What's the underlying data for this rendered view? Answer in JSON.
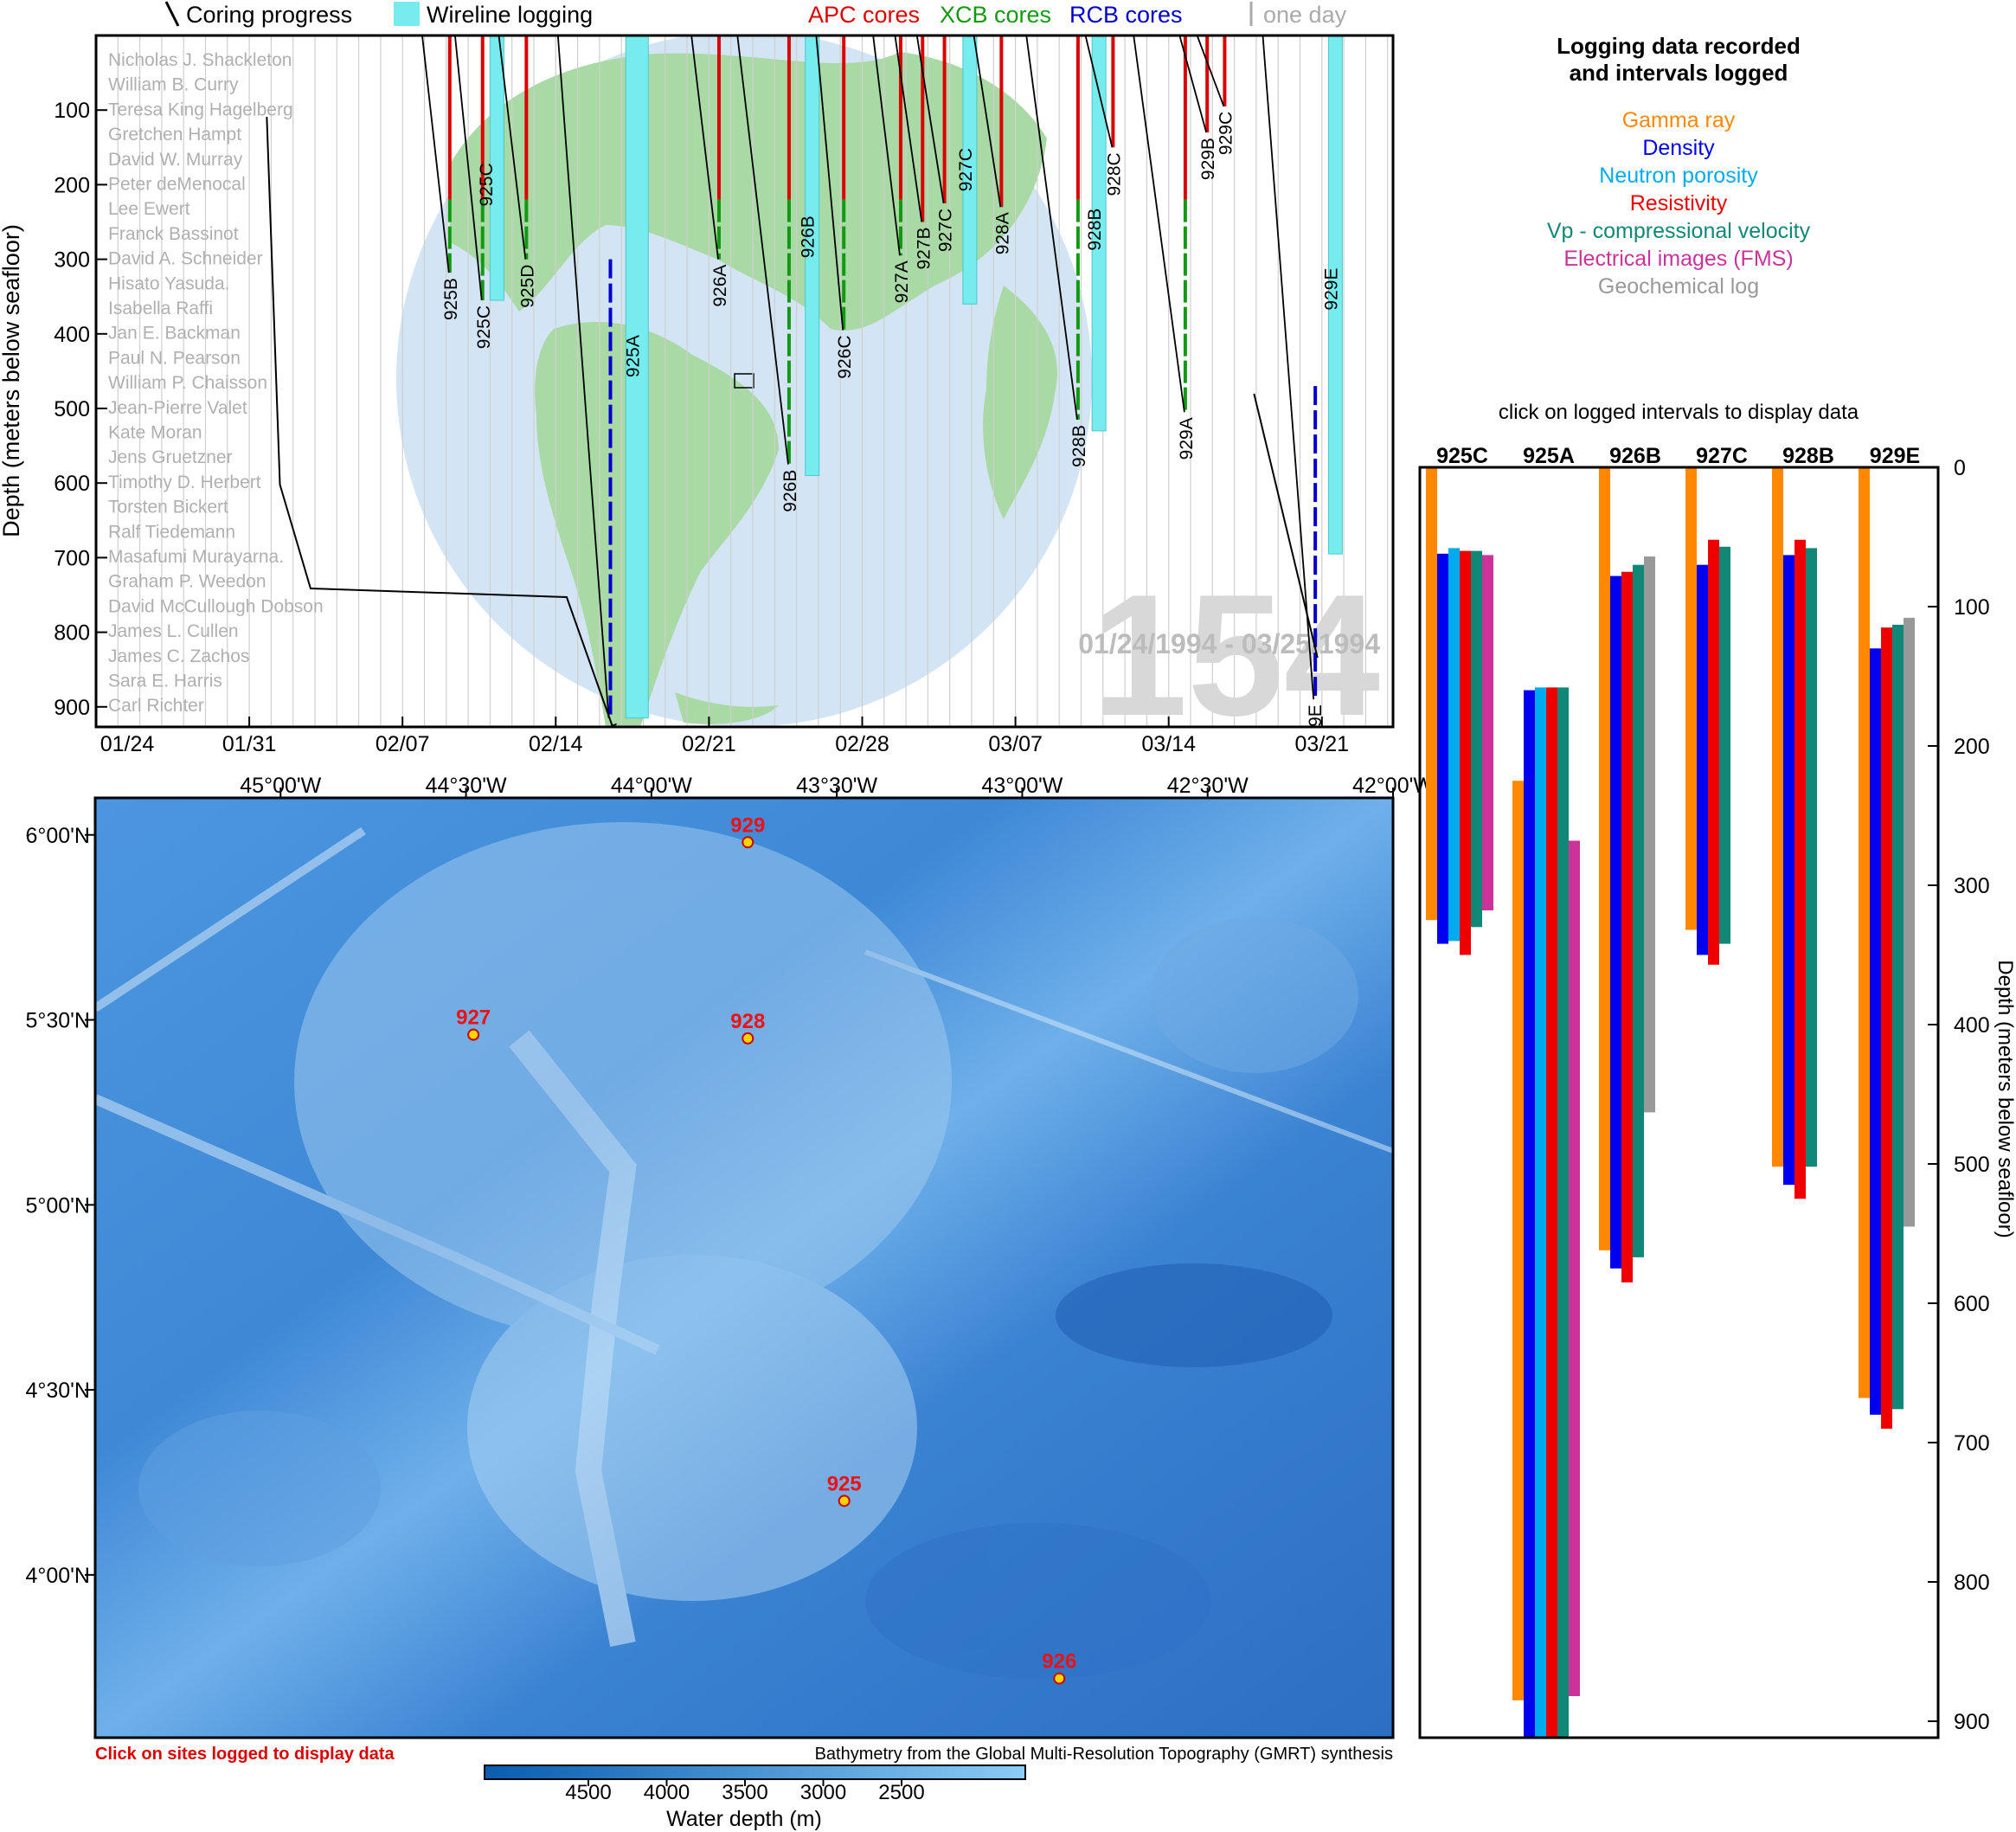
{
  "legend_top": {
    "coring": "Coring progress",
    "wireline": "Wireline logging",
    "apc": "APC cores",
    "xcb": "XCB cores",
    "rcb": "RCB cores",
    "oneday": "one day"
  },
  "colors": {
    "apc": "#dd0000",
    "xcb": "#119911",
    "rcb": "#0000cc",
    "wireline": "#77ecef",
    "gamma": "#ff8800",
    "density": "#0000ee",
    "neutron": "#00aaee",
    "resistivity": "#ee0000",
    "vp": "#118877",
    "fms": "#cc3399",
    "geochem": "#999999"
  },
  "timeline": {
    "ylabel": "Depth (meters below seafloor)",
    "yticks": [
      "100",
      "200",
      "300",
      "400",
      "500",
      "600",
      "700",
      "800",
      "900"
    ],
    "xticks": [
      "01/24",
      "01/31",
      "02/07",
      "02/14",
      "02/21",
      "02/28",
      "03/07",
      "03/14",
      "03/21"
    ],
    "leg_number": "154",
    "date_range": "01/24/1994 - 03/25/1994",
    "scientists": [
      "Nicholas J. Shackleton",
      "William B. Curry",
      "Teresa King Hagelberg",
      "Gretchen Hampt",
      "David W. Murray",
      "Peter deMenocal",
      "Lee Ewert",
      "Franck Bassinot",
      "David A. Schneider",
      "Hisato Yasuda.",
      "Isabella Raffi",
      "Jan E. Backman",
      "Paul N. Pearson",
      "William P. Chaisson",
      "Jean-Pierre Valet",
      "Kate Moran",
      "Jens Gruetzner",
      "Timothy D. Herbert",
      "Torsten Bickert",
      "Ralf Tiedemann",
      "Masafumi Murayarna.",
      "Graham P. Weedon",
      "David McCullough Dobson",
      "James L. Cullen",
      "James C. Zachos",
      "Sara E. Harris",
      "Carl Richter"
    ],
    "holes": [
      {
        "name": "925B",
        "day": 16.0,
        "depth": 318
      },
      {
        "name": "925C",
        "day": 17.5,
        "depth": 355
      },
      {
        "name": "925D",
        "day": 19.5,
        "depth": 300
      },
      {
        "name": "925A",
        "day": 23.3,
        "depth": 915
      },
      {
        "name": "926A",
        "day": 28.3,
        "depth": 300
      },
      {
        "name": "926B",
        "day": 31.5,
        "depth": 575
      },
      {
        "name": "926C",
        "day": 34.0,
        "depth": 395
      },
      {
        "name": "927A",
        "day": 36.6,
        "depth": 295
      },
      {
        "name": "927B",
        "day": 37.6,
        "depth": 250
      },
      {
        "name": "927C",
        "day": 38.6,
        "depth": 225
      },
      {
        "name": "928A",
        "day": 41.2,
        "depth": 230
      },
      {
        "name": "928B",
        "day": 44.7,
        "depth": 515
      },
      {
        "name": "928C",
        "day": 46.3,
        "depth": 150
      },
      {
        "name": "929A",
        "day": 49.6,
        "depth": 505
      },
      {
        "name": "929B",
        "day": 50.6,
        "depth": 130
      },
      {
        "name": "929C",
        "day": 51.4,
        "depth": 95
      },
      {
        "name": "929E",
        "day": 55.5,
        "depth": 890
      }
    ],
    "wireline": [
      {
        "hole": "925C",
        "day": 18.0,
        "depth": 355
      },
      {
        "hole": "925A",
        "day": 24.2,
        "depth": 915
      },
      {
        "hole": "926B",
        "day": 32.4,
        "depth": 590
      },
      {
        "hole": "927C",
        "day": 39.6,
        "depth": 360
      },
      {
        "hole": "928B",
        "day": 45.5,
        "depth": 530
      },
      {
        "hole": "929E",
        "day": 56.3,
        "depth": 695
      }
    ]
  },
  "map": {
    "lon_ticks": [
      "45°00'W",
      "44°30'W",
      "44°00'W",
      "43°30'W",
      "43°00'W",
      "42°30'W",
      "42°00'W"
    ],
    "lat_ticks": [
      "6°00'N",
      "5°30'N",
      "5°00'N",
      "4°30'N",
      "4°00'N"
    ],
    "sites": [
      {
        "name": "929",
        "lon": -43.74,
        "lat": 5.98
      },
      {
        "name": "927",
        "lon": -44.48,
        "lat": 5.46
      },
      {
        "name": "928",
        "lon": -43.74,
        "lat": 5.45
      },
      {
        "name": "925",
        "lon": -43.48,
        "lat": 4.2
      },
      {
        "name": "926",
        "lon": -42.9,
        "lat": 3.72
      }
    ],
    "click_note": "Click on sites logged to display data",
    "credit": "Bathymetry from the Global Multi-Resolution Topography (GMRT) synthesis",
    "colorbar_ticks": [
      "4500",
      "4000",
      "3500",
      "3000",
      "2500"
    ],
    "colorbar_label": "Water depth (m)"
  },
  "logs": {
    "title_line1": "Logging data recorded",
    "title_line2": "and intervals logged",
    "legend": [
      "Gamma ray",
      "Density",
      "Neutron porosity",
      "Resistivity",
      "Vp - compressional velocity",
      "Electrical images (FMS)",
      "Geochemical log"
    ],
    "subtitle": "click on logged intervals to display data",
    "ylabel": "Depth (meters below seafloor)",
    "yticks": [
      "0",
      "100",
      "200",
      "300",
      "400",
      "500",
      "600",
      "700",
      "800",
      "900"
    ],
    "holes": [
      {
        "name": "925C",
        "intervals": [
          {
            "log": "gamma",
            "top": 0,
            "bottom": 325
          },
          {
            "log": "density",
            "top": 62,
            "bottom": 342
          },
          {
            "log": "neutron",
            "top": 58,
            "bottom": 340
          },
          {
            "log": "resistivity",
            "top": 60,
            "bottom": 350
          },
          {
            "log": "vp",
            "top": 60,
            "bottom": 330
          },
          {
            "log": "fms",
            "top": 63,
            "bottom": 318
          }
        ]
      },
      {
        "name": "925A",
        "intervals": [
          {
            "log": "gamma",
            "top": 225,
            "bottom": 885
          },
          {
            "log": "density",
            "top": 160,
            "bottom": 915
          },
          {
            "log": "neutron",
            "top": 158,
            "bottom": 915
          },
          {
            "log": "resistivity",
            "top": 158,
            "bottom": 915
          },
          {
            "log": "vp",
            "top": 158,
            "bottom": 915
          },
          {
            "log": "fms",
            "top": 268,
            "bottom": 882
          }
        ]
      },
      {
        "name": "926B",
        "intervals": [
          {
            "log": "gamma",
            "top": 0,
            "bottom": 562
          },
          {
            "log": "density",
            "top": 78,
            "bottom": 575
          },
          {
            "log": "resistivity",
            "top": 75,
            "bottom": 585
          },
          {
            "log": "vp",
            "top": 70,
            "bottom": 567
          },
          {
            "log": "geochem",
            "top": 64,
            "bottom": 463
          }
        ]
      },
      {
        "name": "927C",
        "intervals": [
          {
            "log": "gamma",
            "top": 0,
            "bottom": 332
          },
          {
            "log": "density",
            "top": 70,
            "bottom": 350
          },
          {
            "log": "resistivity",
            "top": 52,
            "bottom": 357
          },
          {
            "log": "vp",
            "top": 57,
            "bottom": 342
          }
        ]
      },
      {
        "name": "928B",
        "intervals": [
          {
            "log": "gamma",
            "top": 0,
            "bottom": 502
          },
          {
            "log": "density",
            "top": 63,
            "bottom": 515
          },
          {
            "log": "resistivity",
            "top": 52,
            "bottom": 525
          },
          {
            "log": "vp",
            "top": 58,
            "bottom": 502
          }
        ]
      },
      {
        "name": "929E",
        "intervals": [
          {
            "log": "gamma",
            "top": 0,
            "bottom": 668
          },
          {
            "log": "density",
            "top": 130,
            "bottom": 680
          },
          {
            "log": "resistivity",
            "top": 115,
            "bottom": 690
          },
          {
            "log": "vp",
            "top": 113,
            "bottom": 676
          },
          {
            "log": "geochem",
            "top": 108,
            "bottom": 545
          }
        ]
      }
    ]
  }
}
